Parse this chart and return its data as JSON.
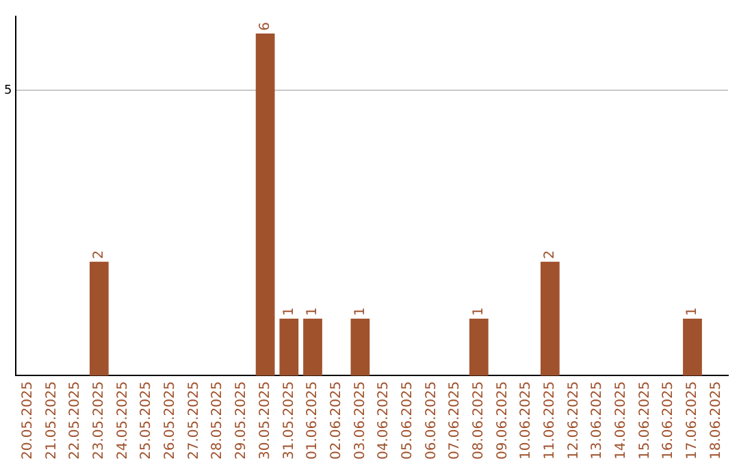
{
  "chart_data": {
    "type": "bar",
    "categories": [
      "20.05.2025",
      "21.05.2025",
      "22.05.2025",
      "23.05.2025",
      "24.05.2025",
      "25.05.2025",
      "26.05.2025",
      "27.05.2025",
      "28.05.2025",
      "29.05.2025",
      "30.05.2025",
      "31.05.2025",
      "01.06.2025",
      "02.06.2025",
      "03.06.2025",
      "04.06.2025",
      "05.06.2025",
      "06.06.2025",
      "07.06.2025",
      "08.06.2025",
      "09.06.2025",
      "10.06.2025",
      "11.06.2025",
      "12.06.2025",
      "13.06.2025",
      "14.06.2025",
      "15.06.2025",
      "16.06.2025",
      "17.06.2025",
      "18.06.2025"
    ],
    "values": [
      0,
      0,
      0,
      2,
      0,
      0,
      0,
      0,
      0,
      0,
      6,
      1,
      1,
      0,
      1,
      0,
      0,
      0,
      0,
      1,
      0,
      0,
      2,
      0,
      0,
      0,
      0,
      0,
      1,
      0
    ],
    "value_labels": [
      null,
      null,
      null,
      "2",
      null,
      null,
      null,
      null,
      null,
      null,
      "6",
      "1",
      "1",
      null,
      "1",
      null,
      null,
      null,
      null,
      "1",
      null,
      null,
      "2",
      null,
      null,
      null,
      null,
      null,
      "1",
      null
    ],
    "color": "#a0522d",
    "ylim": [
      0,
      6.3
    ],
    "yticks": [
      5
    ],
    "grid": "y"
  }
}
